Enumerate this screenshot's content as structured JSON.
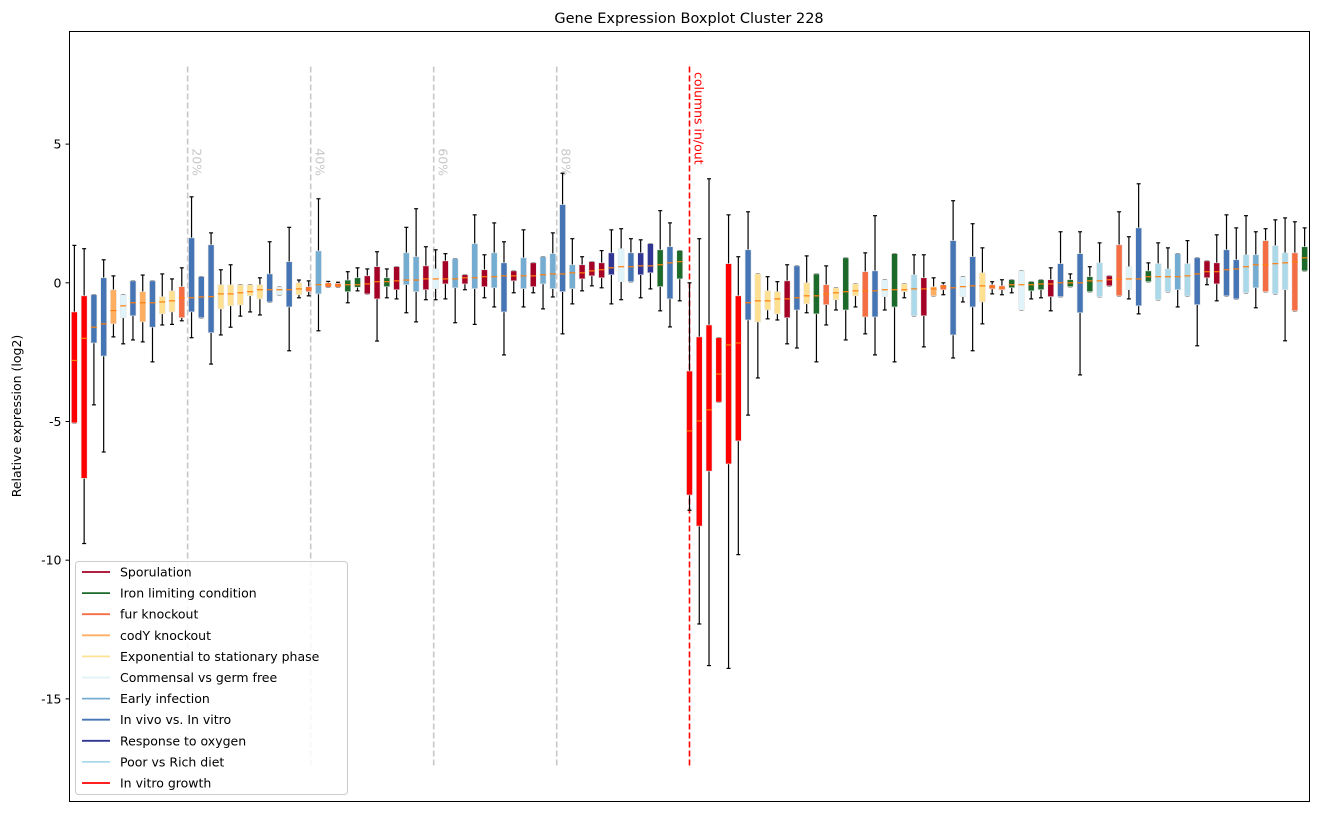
{
  "chart_data": {
    "type": "box",
    "title": "Gene Expression Boxplot Cluster 228",
    "xlabel": "",
    "ylabel": "Relative expression (log2)",
    "ylim": [
      -18.7,
      9.06
    ],
    "yticks": [
      5,
      0,
      -5,
      -10,
      -15
    ],
    "grid": false,
    "legend_placement": "lower-left",
    "median_color": "#ff7f0e",
    "groups": [
      {
        "name": "Sporulation",
        "color": "#a50026"
      },
      {
        "name": "Iron limiting condition",
        "color": "#1b6a2a"
      },
      {
        "name": "fur knockout",
        "color": "#f46d43"
      },
      {
        "name": "codY knockout",
        "color": "#fdae61"
      },
      {
        "name": "Exponential to stationary phase",
        "color": "#fee090"
      },
      {
        "name": "Commensal vs germ free",
        "color": "#e0f3f8"
      },
      {
        "name": "Early infection",
        "color": "#74add1"
      },
      {
        "name": "In vivo vs. In vitro",
        "color": "#4575b4"
      },
      {
        "name": "Response to oxygen",
        "color": "#313695"
      },
      {
        "name": "Poor vs Rich diet",
        "color": "#abd9e9"
      },
      {
        "name": "In vitro growth",
        "color": "#ff0000"
      }
    ],
    "box_fields": [
      "group",
      "whisker_low",
      "q1",
      "median",
      "q3",
      "whisker_high"
    ],
    "boxes": [
      [
        10,
        -5.05,
        -5.05,
        -2.8,
        -1.05,
        1.35
      ],
      [
        10,
        -9.4,
        -7.05,
        -2.0,
        -0.47,
        1.23
      ],
      [
        7,
        -4.4,
        -2.17,
        -1.6,
        -0.43,
        -0.43
      ],
      [
        7,
        -6.1,
        -2.64,
        -1.48,
        0.18,
        0.83
      ],
      [
        3,
        -1.95,
        -1.48,
        -1.0,
        -0.25,
        0.25
      ],
      [
        5,
        -2.2,
        -1.26,
        -0.83,
        -0.43,
        -0.43
      ],
      [
        7,
        -2.06,
        -1.19,
        -0.72,
        0.07,
        0.07
      ],
      [
        3,
        -2.13,
        -1.41,
        -0.72,
        -0.32,
        0.28
      ],
      [
        7,
        -2.85,
        -1.6,
        -0.72,
        0.07,
        0.07
      ],
      [
        4,
        -1.52,
        -1.12,
        -0.69,
        -0.5,
        0.32
      ],
      [
        4,
        -1.5,
        -1.05,
        -0.65,
        -0.29,
        0.14
      ],
      [
        2,
        -1.37,
        -1.26,
        -0.54,
        -0.14,
        0.54
      ],
      [
        7,
        -1.98,
        -1.05,
        -0.54,
        1.62,
        3.1
      ],
      [
        7,
        -1.26,
        -1.26,
        -0.51,
        0.22,
        0.22
      ],
      [
        7,
        -2.93,
        -1.8,
        -0.5,
        1.37,
        1.8
      ],
      [
        4,
        -1.88,
        -0.94,
        -0.4,
        -0.07,
        0.47
      ],
      [
        4,
        -1.6,
        -0.83,
        -0.4,
        -0.07,
        0.65
      ],
      [
        4,
        -1.2,
        -0.8,
        -0.36,
        -0.07,
        -0.07
      ],
      [
        4,
        -1.05,
        -0.47,
        -0.32,
        -0.07,
        -0.07
      ],
      [
        4,
        -1.16,
        -0.58,
        -0.25,
        -0.07,
        0.18
      ],
      [
        7,
        -0.69,
        -0.69,
        -0.25,
        0.32,
        1.48
      ],
      [
        5,
        -0.43,
        -0.43,
        -0.25,
        -0.16,
        -0.16
      ],
      [
        7,
        -2.45,
        -0.87,
        -0.25,
        0.76,
        2.0
      ],
      [
        4,
        -0.54,
        -0.43,
        -0.22,
        0,
        0.1
      ],
      [
        2,
        -0.47,
        -0.32,
        -0.22,
        -0.14,
        0.07
      ],
      [
        6,
        -1.73,
        -0.4,
        -0.07,
        1.15,
        3.03
      ],
      [
        2,
        -0.16,
        -0.16,
        -0.07,
        0,
        0.05
      ],
      [
        2,
        -0.16,
        -0.16,
        -0.1,
        -0.02,
        0.02
      ],
      [
        1,
        -0.72,
        -0.32,
        -0.07,
        0.1,
        0.4
      ],
      [
        1,
        -0.29,
        -0.16,
        -0.07,
        0.18,
        0.54
      ],
      [
        0,
        -0.4,
        -0.4,
        -0.04,
        0.25,
        0.5
      ],
      [
        0,
        -2.1,
        -0.58,
        0.04,
        0.58,
        1.12
      ],
      [
        1,
        -0.54,
        -0.14,
        0.04,
        0.18,
        0.5
      ],
      [
        0,
        -0.58,
        -0.25,
        0.07,
        0.58,
        0.58
      ],
      [
        6,
        -1.08,
        -0.07,
        0.1,
        1.08,
        2.0
      ],
      [
        6,
        -1.41,
        -0.32,
        0.1,
        0.94,
        2.67
      ],
      [
        0,
        -0.61,
        -0.25,
        0.14,
        0.61,
        1.3
      ],
      [
        5,
        -0.61,
        -0.21,
        0.14,
        0.5,
        1.19
      ],
      [
        0,
        -0.58,
        -0.04,
        0.14,
        0.79,
        1.05
      ],
      [
        6,
        -1.44,
        -0.18,
        0.14,
        0.87,
        0.87
      ],
      [
        0,
        -0.25,
        -0.04,
        0.18,
        0.29,
        0.29
      ],
      [
        6,
        -1.5,
        -0.21,
        0.18,
        1.41,
        2.45
      ],
      [
        0,
        -0.54,
        -0.14,
        0.22,
        0.47,
        1.01
      ],
      [
        6,
        -0.87,
        -0.18,
        0.22,
        1.08,
        2.16
      ],
      [
        7,
        -2.6,
        -1.05,
        0.25,
        0.72,
        1.48
      ],
      [
        0,
        -0.36,
        0.07,
        0.25,
        0.43,
        0.43
      ],
      [
        6,
        -0.87,
        -0.21,
        0.25,
        0.9,
        1.91
      ],
      [
        0,
        -0.36,
        -0.14,
        0.25,
        0.72,
        0.72
      ],
      [
        6,
        -0.94,
        -0.04,
        0.29,
        0.94,
        0.94
      ],
      [
        6,
        -0.51,
        -0.21,
        0.32,
        1.05,
        1.8
      ],
      [
        7,
        -1.84,
        -0.32,
        0.32,
        2.82,
        3.95
      ],
      [
        6,
        -0.76,
        -0.21,
        0.36,
        0.65,
        1.59
      ],
      [
        0,
        -0.29,
        0.14,
        0.36,
        0.65,
        0.94
      ],
      [
        0,
        -0.11,
        0.25,
        0.43,
        0.76,
        0.76
      ],
      [
        0,
        -0.18,
        0.18,
        0.47,
        0.72,
        1.16
      ],
      [
        8,
        -0.76,
        0.29,
        0.54,
        1.08,
        1.91
      ],
      [
        5,
        -0.61,
        0.04,
        0.58,
        1.23,
        1.95
      ],
      [
        7,
        0.04,
        0.04,
        0.58,
        1.08,
        1.59
      ],
      [
        8,
        -0.54,
        0.29,
        0.61,
        1.08,
        1.55
      ],
      [
        8,
        -0.22,
        0.36,
        0.61,
        1.41,
        1.41
      ],
      [
        1,
        -1.01,
        -0.14,
        0.65,
        1.19,
        2.6
      ],
      [
        7,
        -1.59,
        -0.58,
        0.72,
        1.3,
        2.16
      ],
      [
        1,
        -0.65,
        0.14,
        0.76,
        1.16,
        1.16
      ],
      [
        10,
        -8.2,
        -7.65,
        -5.34,
        -3.18,
        0
      ],
      [
        10,
        -12.3,
        -8.77,
        -4.98,
        -1.95,
        1.59
      ],
      [
        10,
        -13.8,
        -6.79,
        -4.58,
        -1.52,
        3.75
      ],
      [
        10,
        -4.3,
        -4.3,
        -3.29,
        -1.98,
        -1.98
      ],
      [
        10,
        -13.9,
        -6.53,
        -2.24,
        0.69,
        2.45
      ],
      [
        10,
        -9.8,
        -5.7,
        -2.17,
        -0.47,
        0.94
      ],
      [
        7,
        -4.77,
        -1.34,
        -0.72,
        1.19,
        2.56
      ],
      [
        4,
        -3.43,
        -1.41,
        -0.65,
        0.32,
        0.32
      ],
      [
        4,
        -1.3,
        -0.98,
        -0.65,
        -0.29,
        0.22
      ],
      [
        4,
        -1.34,
        -1.12,
        -0.58,
        -0.32,
        0.04
      ],
      [
        0,
        -2.2,
        -1.26,
        -0.58,
        0.07,
        0.65
      ],
      [
        7,
        -2.35,
        -0.98,
        -0.54,
        0.61,
        0.61
      ],
      [
        4,
        -1.08,
        -0.76,
        -0.47,
        0,
        0.97
      ],
      [
        1,
        -2.85,
        -1.12,
        -0.47,
        0.32,
        0.32
      ],
      [
        2,
        -1.52,
        -0.79,
        -0.4,
        -0.07,
        0.61
      ],
      [
        4,
        -0.98,
        -0.61,
        -0.36,
        -0.18,
        -0.18
      ],
      [
        1,
        -2.06,
        -0.98,
        -0.32,
        0.9,
        0.9
      ],
      [
        4,
        -0.87,
        -0.47,
        -0.29,
        -0.04,
        -0.04
      ],
      [
        2,
        -1.84,
        -1.23,
        -0.29,
        0.4,
        1.08
      ],
      [
        7,
        -2.6,
        -1.23,
        -0.29,
        0.43,
        2.42
      ],
      [
        5,
        -0.98,
        -0.5,
        -0.25,
        0.11,
        0.11
      ],
      [
        1,
        -2.85,
        -0.87,
        -0.25,
        1.05,
        1.05
      ],
      [
        4,
        -0.54,
        -0.32,
        -0.25,
        -0.04,
        -0.04
      ],
      [
        9,
        -1.19,
        -1.19,
        -0.22,
        0.29,
        1.01
      ],
      [
        0,
        -2.31,
        -1.19,
        -0.22,
        0.18,
        1.01
      ],
      [
        3,
        -0.47,
        -0.47,
        -0.22,
        -0.14,
        0.18
      ],
      [
        2,
        -0.43,
        -0.25,
        -0.14,
        -0.07,
        0.0
      ],
      [
        7,
        -2.71,
        -1.88,
        -0.18,
        1.52,
        2.96
      ],
      [
        5,
        -0.69,
        -0.5,
        -0.14,
        0.22,
        0.22
      ],
      [
        7,
        -2.45,
        -0.87,
        -0.11,
        0.94,
        2.13
      ],
      [
        4,
        -1.48,
        -0.69,
        -0.11,
        0.36,
        1.26
      ],
      [
        2,
        -0.4,
        -0.22,
        -0.14,
        -0.07,
        0.04
      ],
      [
        2,
        -0.43,
        -0.25,
        -0.18,
        -0.11,
        0.11
      ],
      [
        1,
        -0.36,
        -0.18,
        -0.07,
        0.11,
        0.11
      ],
      [
        5,
        -0.98,
        -0.98,
        -0.07,
        0.43,
        0.43
      ],
      [
        1,
        -0.58,
        -0.29,
        -0.07,
        0.04,
        0.04
      ],
      [
        1,
        -0.54,
        -0.25,
        -0.04,
        0.11,
        0.11
      ],
      [
        0,
        -1.01,
        -0.5,
        -0.04,
        0.11,
        0.54
      ],
      [
        7,
        -0.5,
        -0.5,
        0,
        0.69,
        1.84
      ],
      [
        1,
        -0.14,
        -0.14,
        0,
        0.11,
        0.32
      ],
      [
        7,
        -3.32,
        -1.08,
        0,
        1.05,
        1.84
      ],
      [
        1,
        -0.32,
        -0.32,
        0.07,
        0.22,
        0.58
      ],
      [
        9,
        -0.5,
        -0.5,
        0.07,
        0.72,
        1.44
      ],
      [
        0,
        -0.11,
        -0.11,
        0.11,
        0.25,
        0.25
      ],
      [
        2,
        -0.47,
        -0.47,
        0.14,
        1.37,
        2.56
      ],
      [
        5,
        -0.58,
        -0.25,
        0.14,
        0.58,
        1.66
      ],
      [
        7,
        -1.12,
        -0.83,
        0.14,
        1.98,
        3.57
      ],
      [
        1,
        0.04,
        0.04,
        0.22,
        0.43,
        0.72
      ],
      [
        9,
        -0.61,
        -0.61,
        0.22,
        0.69,
        1.44
      ],
      [
        9,
        -0.32,
        -0.32,
        0.22,
        0.5,
        1.26
      ],
      [
        6,
        -0.87,
        -0.25,
        0.22,
        1.05,
        1.05
      ],
      [
        9,
        -0.47,
        -0.47,
        0.25,
        0.69,
        1.52
      ],
      [
        7,
        -2.27,
        -0.79,
        0.32,
        0.9,
        0.9
      ],
      [
        0,
        -0.07,
        0.18,
        0.4,
        0.79,
        0.79
      ],
      [
        0,
        -0.65,
        -0.04,
        0.4,
        0.72,
        1.73
      ],
      [
        7,
        -0.47,
        -0.47,
        0.47,
        1.19,
        2.45
      ],
      [
        7,
        -0.58,
        -0.58,
        0.5,
        0.83,
        1.98
      ],
      [
        9,
        -0.36,
        -0.36,
        0.58,
        1.01,
        2.42
      ],
      [
        6,
        -0.9,
        -0.18,
        0.65,
        1.01,
        1.84
      ],
      [
        2,
        -0.32,
        -0.32,
        0.65,
        1.52,
        1.95
      ],
      [
        9,
        -0.4,
        -0.4,
        0.69,
        1.34,
        2.27
      ],
      [
        9,
        -2.09,
        -0.25,
        0.72,
        1.08,
        2.34
      ],
      [
        2,
        -1.01,
        -1.01,
        0.76,
        1.08,
        2.2
      ],
      [
        1,
        0.43,
        0.43,
        0.9,
        1.3,
        1.98
      ]
    ],
    "percent_lines": [
      {
        "position": 12.6,
        "label": "20%"
      },
      {
        "position": 25.2,
        "label": "40%"
      },
      {
        "position": 37.8,
        "label": "60%"
      },
      {
        "position": 50.4,
        "label": "80%"
      }
    ],
    "percent_line_color": "#c8c8c8",
    "split_line": {
      "position": 64,
      "label": "columns in/out",
      "color": "#ff0000"
    },
    "vline_range": [
      -17.5,
      7.8
    ]
  }
}
